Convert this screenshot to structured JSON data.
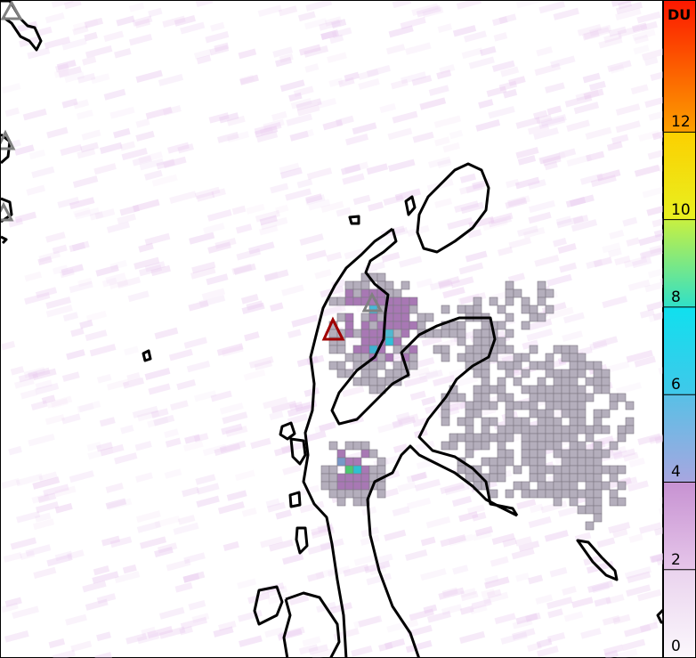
{
  "colorbar": {
    "unit": "DU",
    "ticks": [
      "0",
      "2",
      "4",
      "6",
      "8",
      "10",
      "12"
    ],
    "stops": [
      {
        "value": 0,
        "color": "#fbf7fc"
      },
      {
        "value": 2,
        "color": "#ead3ee"
      },
      {
        "value": 2,
        "color": "#e6c6ea"
      },
      {
        "value": 4,
        "color": "#c792d2"
      },
      {
        "value": 4,
        "color": "#a8a6e0"
      },
      {
        "value": 6,
        "color": "#58c0e6"
      },
      {
        "value": 6,
        "color": "#40c8ea"
      },
      {
        "value": 8,
        "color": "#10e0ee"
      },
      {
        "value": 8,
        "color": "#30e0c8"
      },
      {
        "value": 10,
        "color": "#c8f040"
      },
      {
        "value": 10,
        "color": "#e8f020"
      },
      {
        "value": 12,
        "color": "#fcd000"
      },
      {
        "value": 12,
        "color": "#fca000"
      },
      {
        "value": 15,
        "color": "#fc1800"
      }
    ]
  },
  "markers": {
    "active_volcano_color": "#a00000",
    "other_volcano_color": "#808080",
    "grid_cell_color": "#b4aebc",
    "coastline_color": "#000000"
  }
}
